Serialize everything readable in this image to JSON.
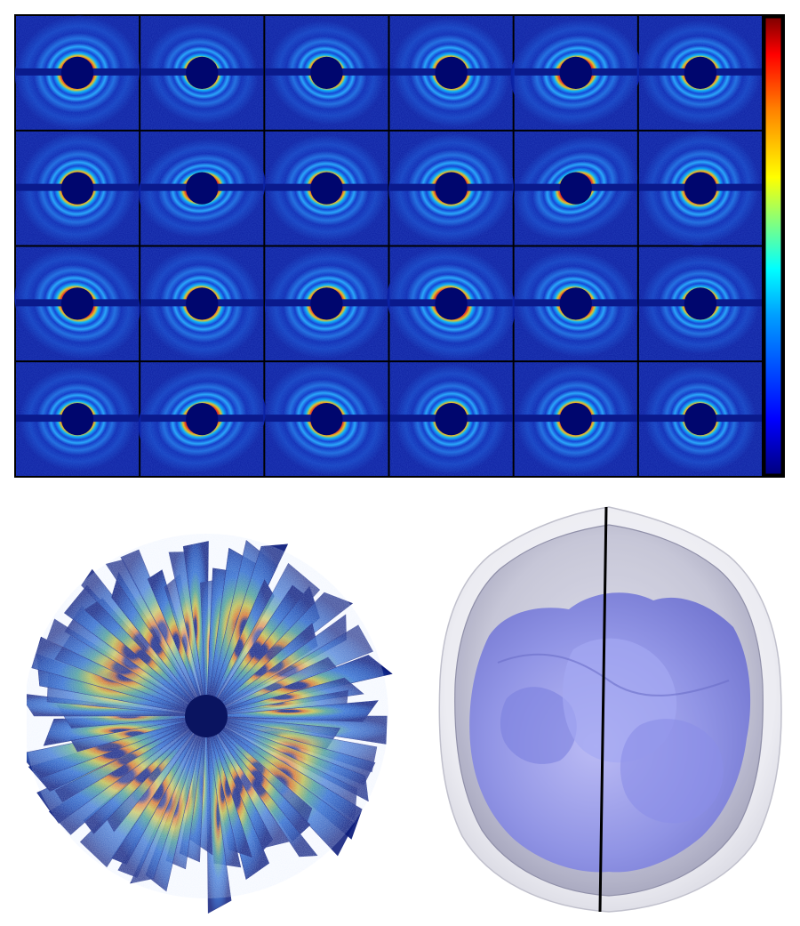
{
  "figure": {
    "diffraction_patterns": {
      "rows": 4,
      "columns": 6,
      "colormap": [
        "#000080",
        "#0000ff",
        "#00a0ff",
        "#00ffff",
        "#80ff80",
        "#ffff00",
        "#ff8000",
        "#ff0000",
        "#800000"
      ],
      "colorbar": {
        "placement": "right"
      },
      "background_color": "#0a1ea0"
    },
    "merged_intensity_map": {
      "placement": "bottom-left",
      "colors": [
        "#0a1a7a",
        "#2a6ad0",
        "#4aa090",
        "#c8c040",
        "#e07020"
      ]
    },
    "electron_density_model": {
      "placement": "bottom-right",
      "shell_colors": [
        "#f0f0f4",
        "#c8c8d8",
        "#7b7fd8"
      ],
      "axis_color": "#000000"
    }
  }
}
